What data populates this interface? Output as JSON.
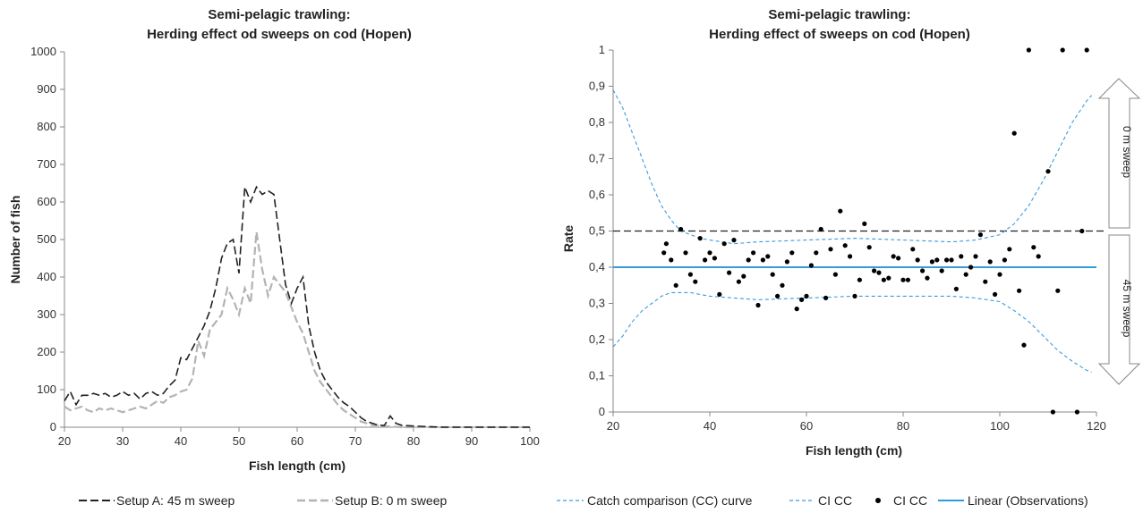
{
  "chart_data": [
    {
      "type": "line",
      "title": "Semi-pelagic trawling:",
      "subtitle": "Herding effect od sweeps on cod (Hopen)",
      "xlabel": "Fish length (cm)",
      "ylabel": "Number of fish",
      "xlim": [
        20,
        100
      ],
      "ylim": [
        0,
        1000
      ],
      "xticks": [
        "20",
        "30",
        "40",
        "50",
        "60",
        "70",
        "80",
        "90",
        "100"
      ],
      "yticks": [
        "0",
        "100",
        "200",
        "300",
        "400",
        "500",
        "600",
        "700",
        "800",
        "900",
        "1000"
      ],
      "grid": false,
      "legend_placement": "bottom",
      "series": [
        {
          "name": "Setup A: 45 m sweep",
          "color": "#222222",
          "dash": "long-dash",
          "x": [
            20,
            21,
            22,
            23,
            24,
            25,
            26,
            27,
            28,
            29,
            30,
            31,
            32,
            33,
            34,
            35,
            36,
            37,
            38,
            39,
            40,
            41,
            42,
            43,
            44,
            45,
            46,
            47,
            48,
            49,
            50,
            51,
            52,
            53,
            54,
            55,
            56,
            57,
            58,
            59,
            60,
            61,
            62,
            63,
            64,
            65,
            66,
            67,
            68,
            69,
            70,
            71,
            72,
            73,
            74,
            75,
            76,
            77,
            78,
            80,
            85,
            90,
            95,
            100
          ],
          "y": [
            70,
            95,
            60,
            85,
            85,
            90,
            85,
            90,
            80,
            85,
            95,
            85,
            90,
            75,
            90,
            95,
            85,
            90,
            110,
            125,
            185,
            180,
            210,
            240,
            270,
            310,
            370,
            450,
            490,
            500,
            410,
            640,
            600,
            640,
            620,
            630,
            620,
            500,
            380,
            330,
            370,
            400,
            270,
            200,
            150,
            120,
            100,
            80,
            65,
            55,
            40,
            25,
            15,
            10,
            5,
            5,
            30,
            10,
            5,
            3,
            0,
            0,
            0,
            0
          ]
        },
        {
          "name": "Setup B: 0 m sweep",
          "color": "#b3b3b3",
          "dash": "long-dash",
          "x": [
            20,
            21,
            22,
            23,
            24,
            25,
            26,
            27,
            28,
            29,
            30,
            31,
            32,
            33,
            34,
            35,
            36,
            37,
            38,
            39,
            40,
            41,
            42,
            43,
            44,
            45,
            46,
            47,
            48,
            49,
            50,
            51,
            52,
            53,
            54,
            55,
            56,
            57,
            58,
            59,
            60,
            61,
            62,
            63,
            64,
            65,
            66,
            67,
            68,
            69,
            70,
            71,
            72,
            73,
            74,
            75,
            76,
            78,
            80,
            85,
            90,
            95,
            100
          ],
          "y": [
            55,
            45,
            50,
            55,
            45,
            40,
            50,
            45,
            50,
            45,
            40,
            45,
            50,
            55,
            50,
            60,
            70,
            65,
            80,
            85,
            95,
            100,
            130,
            230,
            190,
            260,
            280,
            300,
            370,
            340,
            300,
            370,
            330,
            520,
            420,
            350,
            400,
            380,
            360,
            320,
            280,
            250,
            200,
            150,
            120,
            100,
            80,
            60,
            45,
            35,
            25,
            15,
            10,
            5,
            5,
            3,
            2,
            0,
            0,
            0,
            0,
            0,
            0
          ]
        }
      ]
    },
    {
      "type": "scatter",
      "title": "Semi-pelagic trawling:",
      "subtitle": "Herding effect of sweeps on cod (Hopen)",
      "xlabel": "Fish length (cm)",
      "ylabel": "Rate",
      "xlim": [
        20,
        120
      ],
      "ylim": [
        0,
        1
      ],
      "xticks": [
        "20",
        "40",
        "60",
        "80",
        "100",
        "120"
      ],
      "yticks": [
        "0",
        "0,1",
        "0,2",
        "0,3",
        "0,4",
        "0,5",
        "0,6",
        "0,7",
        "0,8",
        "0,9",
        "1"
      ],
      "grid": false,
      "legend_placement": "bottom",
      "reference_line": 0.5,
      "arrow_labels": {
        "upper": "0 m sweep",
        "lower": "45 m sweep"
      },
      "legend": [
        {
          "label": "Catch comparison (CC) curve",
          "color": "#3a9ad9",
          "style": "dashed"
        },
        {
          "label": "CI CC",
          "color": "#3a9ad9",
          "style": "dashed"
        },
        {
          "label": "CI CC",
          "color": "#000000",
          "style": "dot"
        },
        {
          "label": "Linear (Observations)",
          "color": "#2e9be0",
          "style": "solid"
        }
      ],
      "series": [
        {
          "name": "Catch comparison (CC) curve",
          "color": "#3a9ad9",
          "x": [
            20,
            120
          ],
          "y": [
            0.4,
            0.4
          ]
        },
        {
          "name": "CI CC",
          "color": "#3a9ad9",
          "x": [
            20,
            22,
            24,
            26,
            28,
            30,
            32,
            34,
            36,
            38,
            40,
            45,
            50,
            60,
            70,
            80,
            90,
            95,
            100,
            103,
            106,
            109,
            112,
            115,
            118,
            119
          ],
          "y": [
            0.89,
            0.84,
            0.77,
            0.7,
            0.63,
            0.57,
            0.53,
            0.5,
            0.49,
            0.48,
            0.475,
            0.465,
            0.47,
            0.475,
            0.48,
            0.475,
            0.47,
            0.475,
            0.49,
            0.52,
            0.57,
            0.64,
            0.72,
            0.8,
            0.86,
            0.875
          ]
        },
        {
          "name": "CI CC",
          "color": "#3a9ad9",
          "x": [
            20,
            22,
            24,
            26,
            28,
            30,
            32,
            34,
            36,
            38,
            40,
            45,
            50,
            60,
            70,
            80,
            90,
            95,
            100,
            103,
            106,
            109,
            112,
            115,
            118,
            119
          ],
          "y": [
            0.18,
            0.21,
            0.25,
            0.28,
            0.3,
            0.32,
            0.33,
            0.33,
            0.33,
            0.325,
            0.32,
            0.315,
            0.31,
            0.315,
            0.32,
            0.32,
            0.32,
            0.315,
            0.305,
            0.28,
            0.25,
            0.21,
            0.17,
            0.14,
            0.115,
            0.11
          ]
        },
        {
          "name": "CI CC",
          "color": "#000000",
          "x": [
            30.5,
            31,
            32,
            33,
            34,
            35,
            36,
            37,
            38,
            39,
            40,
            41,
            42,
            43,
            44,
            45,
            46,
            47,
            48,
            49,
            50,
            51,
            52,
            53,
            54,
            55,
            56,
            57,
            58,
            59,
            60,
            61,
            62,
            63,
            64,
            65,
            66,
            67,
            68,
            69,
            70,
            71,
            72,
            73,
            74,
            75,
            76,
            77,
            78,
            79,
            80,
            81,
            82,
            83,
            84,
            85,
            86,
            87,
            88,
            89,
            90,
            91,
            92,
            93,
            94,
            95,
            96,
            97,
            98,
            99,
            100,
            101,
            102,
            103,
            104,
            105,
            106,
            107,
            108,
            110,
            111,
            112,
            113,
            116,
            117,
            118
          ],
          "y": [
            0.44,
            0.465,
            0.42,
            0.35,
            0.505,
            0.44,
            0.38,
            0.36,
            0.48,
            0.42,
            0.44,
            0.425,
            0.325,
            0.465,
            0.385,
            0.475,
            0.36,
            0.375,
            0.42,
            0.44,
            0.295,
            0.42,
            0.43,
            0.38,
            0.32,
            0.35,
            0.415,
            0.44,
            0.285,
            0.31,
            0.32,
            0.405,
            0.44,
            0.505,
            0.315,
            0.45,
            0.38,
            0.555,
            0.46,
            0.43,
            0.32,
            0.365,
            0.52,
            0.455,
            0.39,
            0.385,
            0.365,
            0.37,
            0.43,
            0.425,
            0.365,
            0.365,
            0.45,
            0.42,
            0.39,
            0.37,
            0.415,
            0.42,
            0.39,
            0.42,
            0.42,
            0.34,
            0.43,
            0.38,
            0.4,
            0.43,
            0.49,
            0.36,
            0.415,
            0.325,
            0.38,
            0.42,
            0.45,
            0.77,
            0.335,
            0.185,
            1.0,
            0.455,
            0.43,
            0.665,
            0.0,
            0.335,
            1.0,
            0.0,
            0.5,
            1.0
          ]
        }
      ]
    }
  ]
}
